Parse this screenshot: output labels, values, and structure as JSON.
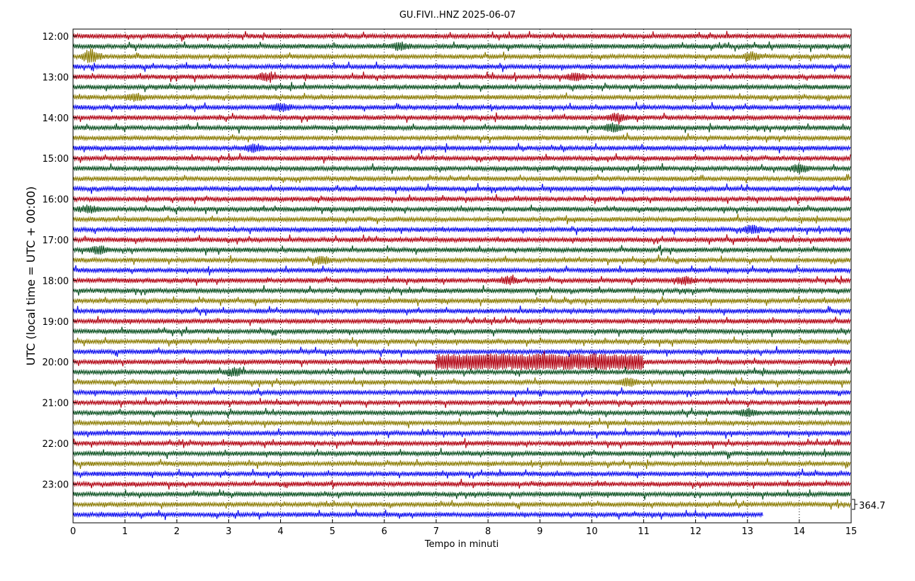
{
  "chart_data": {
    "type": "line",
    "title": "GU.FIVI..HNZ 2025-06-07",
    "xlabel": "Tempo in minuti",
    "ylabel": "UTC (local time = UTC + 00:00)",
    "xlim": [
      0,
      15
    ],
    "x_ticks": [
      0,
      1,
      2,
      3,
      4,
      5,
      6,
      7,
      8,
      9,
      10,
      11,
      12,
      13,
      14,
      15
    ],
    "y_ticks": [
      "12:00",
      "13:00",
      "14:00",
      "15:00",
      "16:00",
      "17:00",
      "18:00",
      "19:00",
      "20:00",
      "21:00",
      "22:00",
      "23:00"
    ],
    "scale_label": "364.7",
    "grid": "vertical dotted",
    "colors": [
      "#b00010",
      "#0a5020",
      "#8a7a00",
      "#0a0aee"
    ],
    "traces_start": "12:00",
    "trace_interval_minutes": 15,
    "trace_count": 48,
    "last_trace_end_minute": 13.3,
    "events": [
      {
        "time": "12:30",
        "minute": 0.35,
        "amplitude": "high"
      },
      {
        "time": "12:15",
        "minute": 6.3,
        "amplitude": "medium"
      },
      {
        "time": "12:30",
        "minute": 13.1,
        "amplitude": "medium"
      },
      {
        "time": "13:00",
        "minute": 9.7,
        "amplitude": "medium"
      },
      {
        "time": "13:00",
        "minute": 3.7,
        "amplitude": "medium"
      },
      {
        "time": "13:30",
        "minute": 1.2,
        "amplitude": "medium"
      },
      {
        "time": "13:45",
        "minute": 4.0,
        "amplitude": "medium"
      },
      {
        "time": "14:00",
        "minute": 10.5,
        "amplitude": "medium"
      },
      {
        "time": "14:15",
        "minute": 10.4,
        "amplitude": "medium"
      },
      {
        "time": "14:45",
        "minute": 3.5,
        "amplitude": "medium"
      },
      {
        "time": "15:15",
        "minute": 14.0,
        "amplitude": "medium"
      },
      {
        "time": "16:15",
        "minute": 0.3,
        "amplitude": "medium"
      },
      {
        "time": "16:45",
        "minute": 13.1,
        "amplitude": "medium"
      },
      {
        "time": "17:15",
        "minute": 0.5,
        "amplitude": "medium"
      },
      {
        "time": "17:30",
        "minute": 4.8,
        "amplitude": "medium"
      },
      {
        "time": "18:00",
        "minute": 8.4,
        "amplitude": "medium"
      },
      {
        "time": "18:00",
        "minute": 11.8,
        "amplitude": "medium"
      },
      {
        "time": "20:00",
        "minute": 9.0,
        "amplitude": "high",
        "duration": 4.0
      },
      {
        "time": "20:15",
        "minute": 3.1,
        "amplitude": "medium"
      },
      {
        "time": "20:30",
        "minute": 10.7,
        "amplitude": "medium"
      },
      {
        "time": "21:15",
        "minute": 13.0,
        "amplitude": "medium"
      }
    ]
  }
}
